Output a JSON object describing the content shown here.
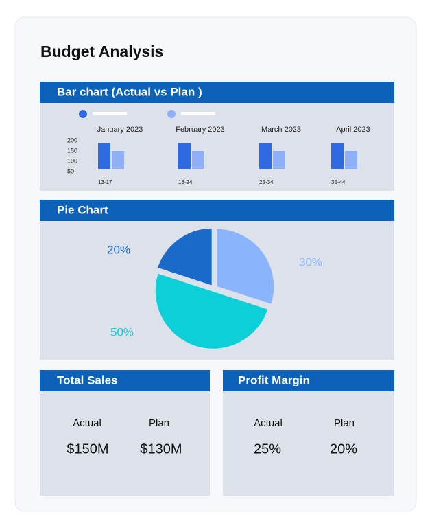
{
  "title": "Budget Analysis",
  "chart_data": [
    {
      "type": "bar",
      "title": "Bar chart (Actual vs Plan )",
      "categories": [
        "January 2023",
        "February 2023",
        "March 2023",
        "April 2023"
      ],
      "ranges": [
        "13-17",
        "18-24",
        "25-34",
        "35-44"
      ],
      "series": [
        {
          "color": "#2f6be0",
          "values": [
            190,
            190,
            190,
            190
          ]
        },
        {
          "color": "#8fb0f7",
          "values": [
            150,
            150,
            150,
            150
          ]
        }
      ],
      "ylim": [
        50,
        200
      ],
      "yticks": [
        200,
        150,
        100,
        50
      ]
    },
    {
      "type": "pie",
      "title": "Pie Chart",
      "values": [
        20,
        30,
        50
      ],
      "value_labels": [
        "20%",
        "30%",
        "50%"
      ],
      "colors": [
        "#1a6bc9",
        "#8ab4fb",
        "#0ccfd8"
      ]
    }
  ],
  "cards": [
    {
      "title": "Total Sales",
      "items": [
        {
          "label": "Actual",
          "value": "$150M"
        },
        {
          "label": "Plan",
          "value": "$130M"
        }
      ]
    },
    {
      "title": "Profit Margin",
      "items": [
        {
          "label": "Actual",
          "value": "25%"
        },
        {
          "label": "Plan",
          "value": "20%"
        }
      ]
    }
  ]
}
